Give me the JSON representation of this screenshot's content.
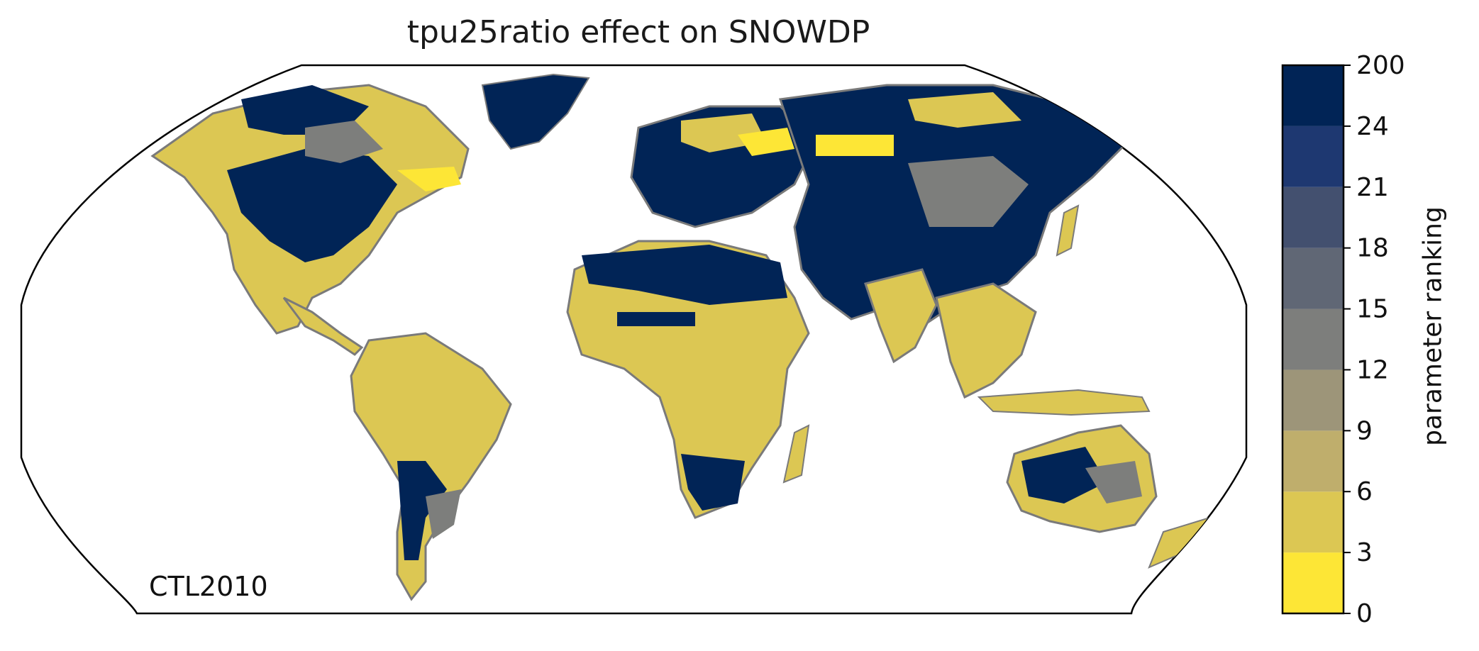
{
  "title": "tpu25ratio effect on SNOWDP",
  "case_label": "CTL2010",
  "colorbar": {
    "label": "parameter ranking",
    "ticks": [
      "0",
      "3",
      "6",
      "9",
      "12",
      "15",
      "18",
      "21",
      "24",
      "200"
    ],
    "colors": [
      "#fde636",
      "#dcc753",
      "#bfae6c",
      "#9d9579",
      "#7d7e7c",
      "#606775",
      "#43506f",
      "#1e3871",
      "#012456"
    ]
  },
  "map": {
    "projection": "Robinson",
    "border_color": "#7a7a7a",
    "legend_ranges": [
      "0-3",
      "3-6",
      "6-9",
      "9-12",
      "12-15",
      "15-18",
      "18-21",
      "21-24",
      "24-200"
    ]
  }
}
